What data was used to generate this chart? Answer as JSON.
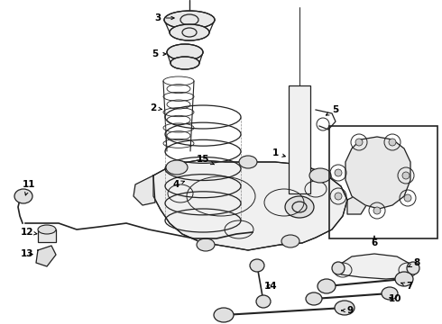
{
  "bg_color": "#ffffff",
  "line_color": "#222222",
  "label_color": "#000000",
  "fig_width": 4.9,
  "fig_height": 3.6,
  "dpi": 100
}
